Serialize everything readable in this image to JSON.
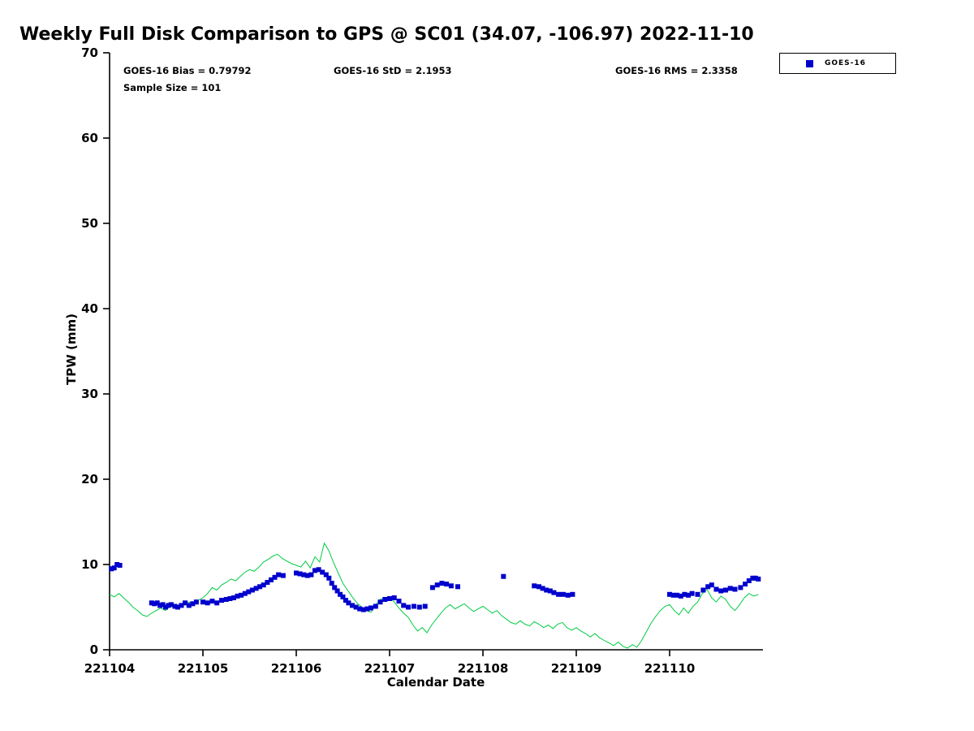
{
  "stats": {
    "bias": "GOES-16 Bias = 0.79792",
    "std": "GOES-16 StD = 2.1953",
    "rms": "GOES-16 RMS = 2.3358",
    "sample_size": "Sample Size = 101"
  },
  "legend": {
    "items": [
      {
        "label": "GOES-16",
        "marker": "square",
        "marker_color": "#0000cc"
      }
    ]
  },
  "chart_data": {
    "type": "scatter",
    "title": "Weekly Full Disk Comparison to GPS @ SC01 (34.07, -106.97) 2022-11-10",
    "xlabel": "Calendar Date",
    "ylabel": "TPW (mm)",
    "xlim": [
      221104,
      221111
    ],
    "ylim": [
      0,
      70
    ],
    "x_ticks": [
      221104,
      221105,
      221106,
      221107,
      221108,
      221109,
      221110
    ],
    "y_ticks": [
      0,
      10,
      20,
      30,
      40,
      50,
      60,
      70
    ],
    "grid": false,
    "legend_position": "top-right",
    "series": [
      {
        "name": "GPS",
        "type": "line",
        "color": "#00cc44",
        "x_start": 221104.0,
        "x_step": 0.05,
        "y": [
          6.5,
          6.2,
          6.6,
          6.1,
          5.6,
          5.0,
          4.6,
          4.1,
          3.9,
          4.3,
          4.6,
          4.9,
          4.6,
          5.1,
          5.3,
          5.0,
          5.4,
          5.6,
          5.5,
          5.8,
          6.1,
          6.6,
          7.3,
          7.0,
          7.6,
          7.9,
          8.3,
          8.1,
          8.6,
          9.1,
          9.4,
          9.2,
          9.7,
          10.3,
          10.6,
          11.0,
          11.2,
          10.7,
          10.4,
          10.1,
          9.9,
          9.7,
          10.4,
          9.6,
          10.9,
          10.3,
          12.5,
          11.6,
          10.2,
          9.0,
          7.8,
          7.0,
          6.2,
          5.5,
          5.0,
          4.6,
          4.4,
          5.3,
          5.9,
          6.1,
          6.2,
          5.6,
          4.9,
          4.3,
          3.8,
          2.9,
          2.2,
          2.6,
          2.0,
          2.9,
          3.6,
          4.3,
          4.9,
          5.3,
          4.8,
          5.1,
          5.4,
          4.9,
          4.5,
          4.8,
          5.1,
          4.7,
          4.3,
          4.6,
          4.0,
          3.6,
          3.2,
          3.0,
          3.4,
          3.0,
          2.8,
          3.3,
          3.0,
          2.6,
          2.9,
          2.5,
          3.0,
          3.2,
          2.6,
          2.3,
          2.6,
          2.2,
          1.9,
          1.5,
          1.9,
          1.4,
          1.1,
          0.8,
          0.5,
          0.9,
          0.4,
          0.2,
          0.6,
          0.3,
          1.1,
          2.1,
          3.1,
          3.9,
          4.6,
          5.1,
          5.3,
          4.6,
          4.1,
          4.9,
          4.3,
          5.1,
          5.6,
          6.6,
          7.1,
          6.1,
          5.6,
          6.3,
          5.9,
          5.1,
          4.6,
          5.3,
          6.1,
          6.6,
          6.3,
          6.5
        ]
      },
      {
        "name": "GOES-16",
        "type": "scatter",
        "color": "#0000cc",
        "marker": "square",
        "x": [
          221104.02,
          221104.05,
          221104.08,
          221104.11,
          221104.45,
          221104.48,
          221104.51,
          221104.54,
          221104.57,
          221104.6,
          221104.63,
          221104.66,
          221104.7,
          221104.73,
          221104.77,
          221104.81,
          221104.85,
          221104.89,
          221104.93,
          221105.0,
          221105.05,
          221105.1,
          221105.15,
          221105.2,
          221105.25,
          221105.29,
          221105.33,
          221105.37,
          221105.41,
          221105.45,
          221105.49,
          221105.53,
          221105.57,
          221105.61,
          221105.65,
          221105.69,
          221105.73,
          221105.77,
          221105.81,
          221105.86,
          221106.0,
          221106.04,
          221106.08,
          221106.12,
          221106.16,
          221106.2,
          221106.24,
          221106.28,
          221106.32,
          221106.35,
          221106.38,
          221106.41,
          221106.44,
          221106.47,
          221106.5,
          221106.53,
          221106.56,
          221106.6,
          221106.64,
          221106.68,
          221106.72,
          221106.76,
          221106.8,
          221106.85,
          221106.9,
          221106.95,
          221107.0,
          221107.05,
          221107.1,
          221107.15,
          221107.2,
          221107.26,
          221107.32,
          221107.38,
          221107.46,
          221107.51,
          221107.56,
          221107.61,
          221107.66,
          221107.73,
          221108.22,
          221108.55,
          221108.6,
          221108.64,
          221108.68,
          221108.72,
          221108.76,
          221108.81,
          221108.86,
          221108.91,
          221108.96,
          221110.0,
          221110.04,
          221110.08,
          221110.12,
          221110.16,
          221110.2,
          221110.24,
          221110.3,
          221110.36,
          221110.41,
          221110.45,
          221110.5,
          221110.55,
          221110.6,
          221110.65,
          221110.7,
          221110.76,
          221110.81,
          221110.85,
          221110.89,
          221110.92,
          221110.95
        ],
        "y": [
          9.5,
          9.6,
          10.0,
          9.9,
          5.5,
          5.4,
          5.5,
          5.2,
          5.3,
          5.0,
          5.2,
          5.3,
          5.1,
          5.0,
          5.2,
          5.5,
          5.2,
          5.4,
          5.6,
          5.6,
          5.5,
          5.7,
          5.5,
          5.8,
          5.9,
          6.0,
          6.1,
          6.3,
          6.4,
          6.6,
          6.8,
          7.0,
          7.2,
          7.4,
          7.6,
          7.9,
          8.2,
          8.5,
          8.8,
          8.7,
          9.0,
          8.9,
          8.8,
          8.7,
          8.8,
          9.3,
          9.4,
          9.1,
          8.8,
          8.4,
          7.8,
          7.3,
          6.9,
          6.5,
          6.2,
          5.8,
          5.5,
          5.2,
          5.0,
          4.8,
          4.7,
          4.8,
          4.9,
          5.1,
          5.6,
          5.9,
          6.0,
          6.1,
          5.7,
          5.2,
          5.0,
          5.1,
          5.0,
          5.1,
          7.3,
          7.6,
          7.8,
          7.7,
          7.5,
          7.4,
          8.6,
          7.5,
          7.4,
          7.2,
          7.0,
          6.9,
          6.7,
          6.5,
          6.5,
          6.4,
          6.5,
          6.5,
          6.4,
          6.4,
          6.3,
          6.5,
          6.4,
          6.6,
          6.5,
          7.0,
          7.4,
          7.6,
          7.1,
          6.9,
          7.0,
          7.2,
          7.1,
          7.3,
          7.7,
          8.1,
          8.4,
          8.4,
          8.3
        ]
      }
    ]
  }
}
